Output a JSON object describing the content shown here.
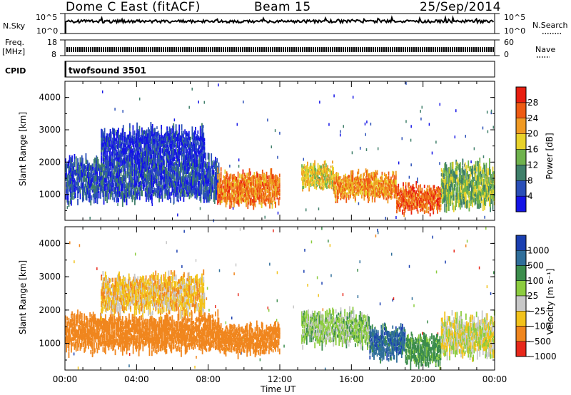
{
  "header": {
    "station": "Dome C East (fitACF)",
    "beam": "Beam 15",
    "date": "25/Sep/2014"
  },
  "top_panels": {
    "nsky_label": "N.Sky",
    "nsky_ticks": [
      "10^5",
      "10^0"
    ],
    "nsearch_label": "N.Search",
    "nsearch_ticks": [
      "10^5",
      "10^0"
    ],
    "freq_label_1": "Freq.",
    "freq_label_2": "[MHz]",
    "freq_ticks": [
      "18",
      "8"
    ],
    "nave_label": "Nave",
    "nave_ticks": [
      "60",
      "0"
    ],
    "cpid_label": "CPID",
    "cpid_value": "twofsound 3501"
  },
  "chart_data": [
    {
      "type": "heatmap",
      "name": "power",
      "ylabel": "Slant Range [km]",
      "yticks": [
        "4000",
        "3000",
        "2000",
        "1000"
      ],
      "ylim": [
        200,
        4500
      ],
      "colorbar_label": "Power [dB]",
      "colorbar_ticks": [
        "28",
        "24",
        "20",
        "16",
        "12",
        "8",
        "4"
      ],
      "colors": [
        "#1414e6",
        "#2a4fb8",
        "#3f7f6a",
        "#6fb24d",
        "#e8d22a",
        "#f09a23",
        "#ee5a12",
        "#e81e10"
      ],
      "regions": [
        {
          "t0": 0.0,
          "t1": 8.6,
          "r0": 700,
          "r1": 2200,
          "power": 6
        },
        {
          "t0": 2.0,
          "t1": 7.8,
          "r0": 1800,
          "r1": 3100,
          "power": 4
        },
        {
          "t0": 8.5,
          "t1": 12.0,
          "r0": 600,
          "r1": 1700,
          "power": 24
        },
        {
          "t0": 13.2,
          "t1": 15.0,
          "r0": 1100,
          "r1": 2000,
          "power": 18
        },
        {
          "t0": 15.0,
          "t1": 18.5,
          "r0": 800,
          "r1": 1700,
          "power": 23
        },
        {
          "t0": 18.5,
          "t1": 21.0,
          "r0": 400,
          "r1": 1300,
          "power": 26
        },
        {
          "t0": 21.0,
          "t1": 24.0,
          "r0": 500,
          "r1": 2000,
          "power": 14
        }
      ]
    },
    {
      "type": "heatmap",
      "name": "velocity",
      "ylabel": "Slant Range [km]",
      "yticks": [
        "4000",
        "3000",
        "2000",
        "1000"
      ],
      "ylim": [
        200,
        4500
      ],
      "colorbar_label": "Velocity [m s⁻¹]",
      "colorbar_ticks": [
        "1000",
        "500",
        "100",
        "25",
        "−25",
        "−100",
        "−500",
        "−1000"
      ],
      "colors": [
        "#1a3fb0",
        "#2f6e9a",
        "#3c8d4c",
        "#8ccc3f",
        "#c8c8c8",
        "#f2c21b",
        "#f0861e",
        "#e8281a"
      ],
      "regions": [
        {
          "t0": 0.0,
          "t1": 8.6,
          "r0": 700,
          "r1": 1900,
          "vel": -300
        },
        {
          "t0": 2.0,
          "t1": 7.8,
          "r0": 1800,
          "r1": 3100,
          "vel": -60
        },
        {
          "t0": 8.5,
          "t1": 12.0,
          "r0": 600,
          "r1": 1600,
          "vel": -200
        },
        {
          "t0": 13.2,
          "t1": 17.0,
          "r0": 900,
          "r1": 2000,
          "vel": 60
        },
        {
          "t0": 17.0,
          "t1": 19.0,
          "r0": 500,
          "r1": 1500,
          "vel": 800
        },
        {
          "t0": 19.0,
          "t1": 21.0,
          "r0": 300,
          "r1": 1300,
          "vel": 150
        },
        {
          "t0": 21.0,
          "t1": 24.0,
          "r0": 500,
          "r1": 1900,
          "vel": 0
        }
      ]
    }
  ],
  "xaxis": {
    "ticks": [
      "00:00",
      "04:00",
      "08:00",
      "12:00",
      "16:00",
      "20:00",
      "00:00"
    ],
    "label": "Time UT"
  }
}
